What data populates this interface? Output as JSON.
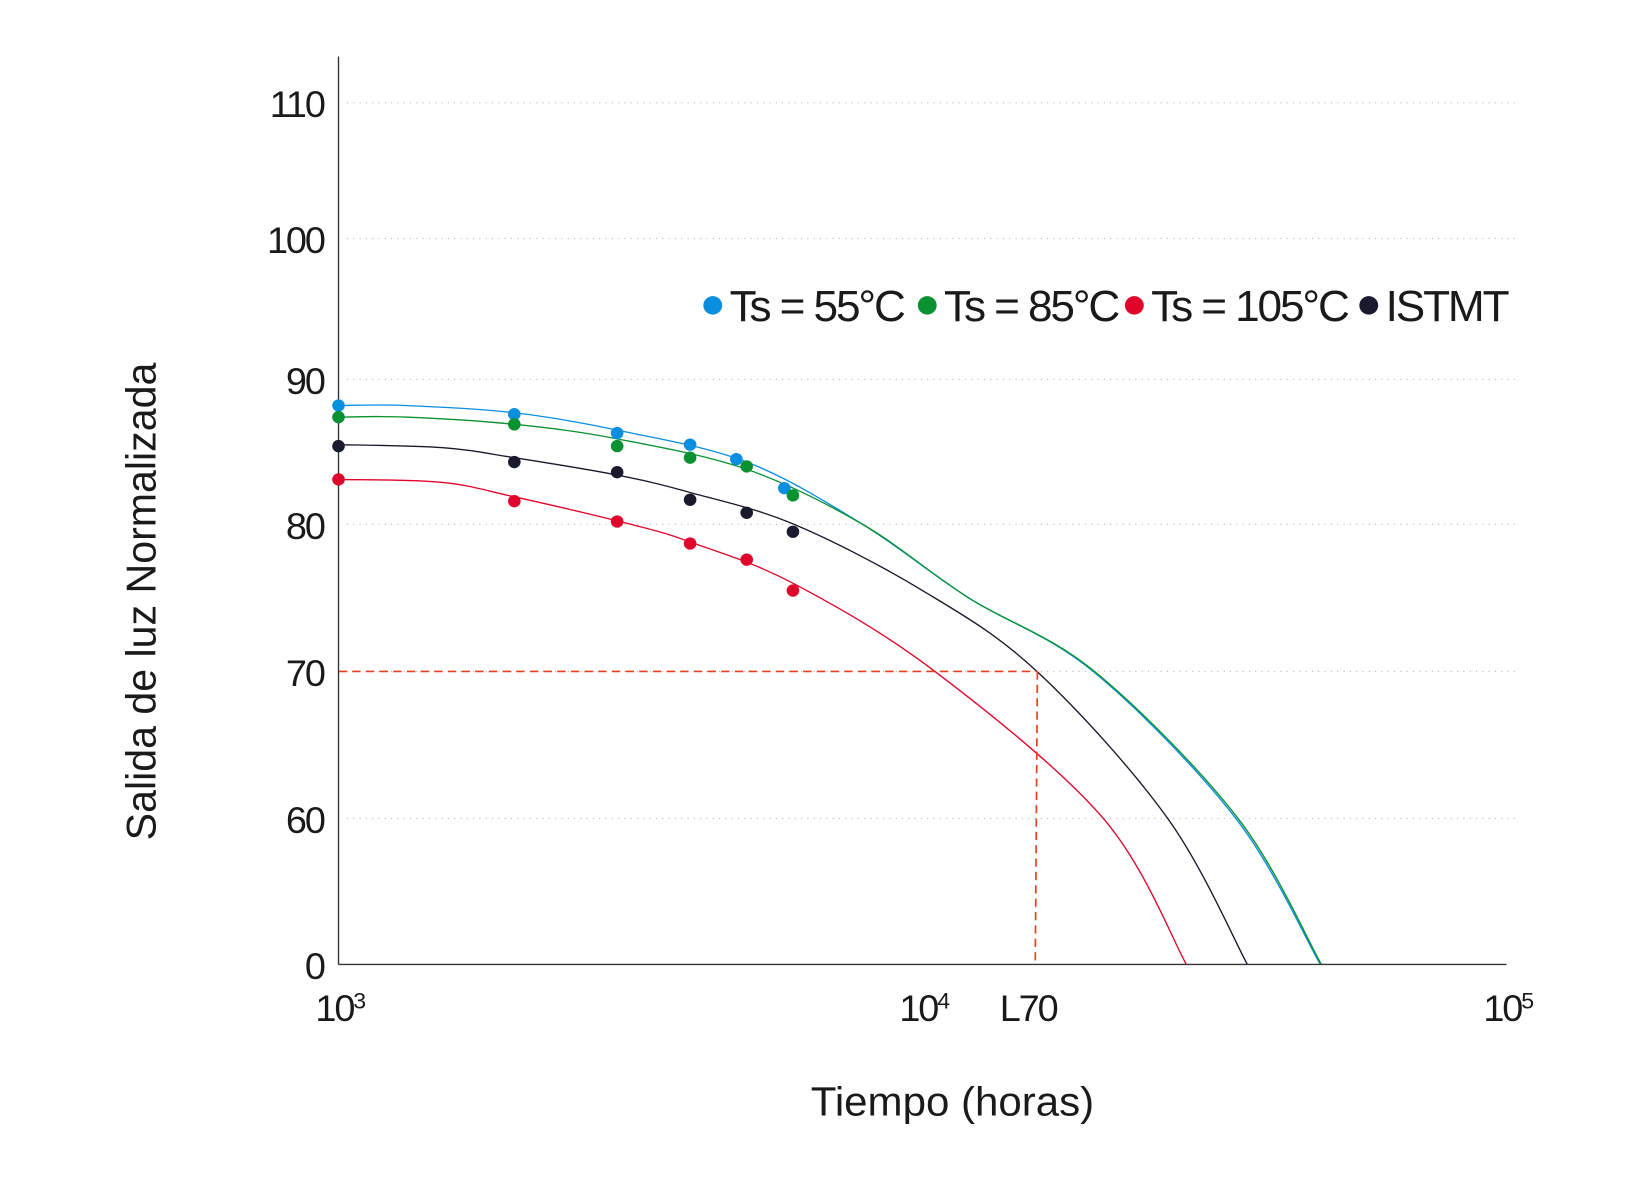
{
  "chart_data": {
    "type": "scatter",
    "title": "",
    "xlabel": "Tiempo (horas)",
    "ylabel": "Salida de luz Normalizada",
    "x_scale": "log",
    "xlim": [
      1000,
      100000
    ],
    "x_ticks": [
      {
        "value": 1000,
        "base": "10",
        "exp": "3"
      },
      {
        "value": 10000,
        "base": "10",
        "exp": "4"
      },
      {
        "value": 100000,
        "base": "10",
        "exp": "5"
      }
    ],
    "y_ticks": [
      0,
      60,
      70,
      80,
      90,
      100,
      110
    ],
    "y_tick_labels": [
      "0",
      "60",
      "70",
      "80",
      "90",
      "100",
      "110"
    ],
    "y_axis_note": "broken axis between 0 and 60",
    "grid": "horizontal dotted",
    "legend_position": "top-right",
    "annotation": {
      "label": "L70",
      "x": 15600,
      "y": 70,
      "color": "#e8401c"
    },
    "series": [
      {
        "name": "Ts = 55°C",
        "label_main": "Ts = 55",
        "label_deg": "°C",
        "color": "#0a8ee0",
        "points": [
          [
            1000,
            88.2
          ],
          [
            2000,
            87.6
          ],
          [
            3000,
            86.3
          ],
          [
            4000,
            85.5
          ],
          [
            4800,
            84.5
          ],
          [
            5800,
            82.5
          ]
        ],
        "fit": [
          [
            1000,
            88.2
          ],
          [
            1300,
            88.2
          ],
          [
            2000,
            87.7
          ],
          [
            3000,
            86.5
          ],
          [
            5000,
            84.3
          ],
          [
            7900,
            80
          ],
          [
            12000,
            75
          ],
          [
            19600,
            70
          ],
          [
            34400,
            60
          ],
          [
            48000,
            0
          ]
        ]
      },
      {
        "name": "Ts = 85°C",
        "label_main": "Ts = 85",
        "label_deg": "°C",
        "color": "#0a9130",
        "points": [
          [
            1000,
            87.4
          ],
          [
            2000,
            86.9
          ],
          [
            3000,
            85.4
          ],
          [
            4000,
            84.6
          ],
          [
            5000,
            84.0
          ],
          [
            6000,
            82.0
          ]
        ],
        "fit": [
          [
            1000,
            87.4
          ],
          [
            1300,
            87.4
          ],
          [
            2000,
            86.9
          ],
          [
            3000,
            85.9
          ],
          [
            5000,
            83.8
          ],
          [
            7900,
            80
          ],
          [
            12000,
            75
          ],
          [
            19700,
            70
          ],
          [
            34700,
            60
          ],
          [
            48200,
            0
          ]
        ]
      },
      {
        "name": "Ts = 105°C",
        "label_main": "Ts = 105",
        "label_deg": "°C",
        "color": "#e0062b",
        "points": [
          [
            1000,
            83.1
          ],
          [
            2000,
            81.6
          ],
          [
            3000,
            80.2
          ],
          [
            4000,
            78.7
          ],
          [
            5000,
            77.6
          ],
          [
            6000,
            75.5
          ]
        ],
        "fit": [
          [
            1000,
            83.1
          ],
          [
            1500,
            82.9
          ],
          [
            2000,
            81.9
          ],
          [
            3170,
            80
          ],
          [
            4000,
            78.8
          ],
          [
            6000,
            76
          ],
          [
            10500,
            70
          ],
          [
            20400,
            60
          ],
          [
            28300,
            0
          ]
        ]
      },
      {
        "name": "ISTMT",
        "label_main": "ISTMT",
        "label_deg": "",
        "color": "#1a1a2e",
        "points": [
          [
            1000,
            85.4
          ],
          [
            2000,
            84.3
          ],
          [
            3000,
            83.6
          ],
          [
            4000,
            81.7
          ],
          [
            5000,
            80.8
          ],
          [
            6000,
            79.5
          ]
        ],
        "fit": [
          [
            1000,
            85.5
          ],
          [
            1500,
            85.3
          ],
          [
            2000,
            84.6
          ],
          [
            3000,
            83.4
          ],
          [
            4000,
            82.2
          ],
          [
            6030,
            80
          ],
          [
            10000,
            75.5
          ],
          [
            15700,
            70
          ],
          [
            26300,
            60
          ],
          [
            36000,
            0
          ]
        ]
      }
    ]
  }
}
